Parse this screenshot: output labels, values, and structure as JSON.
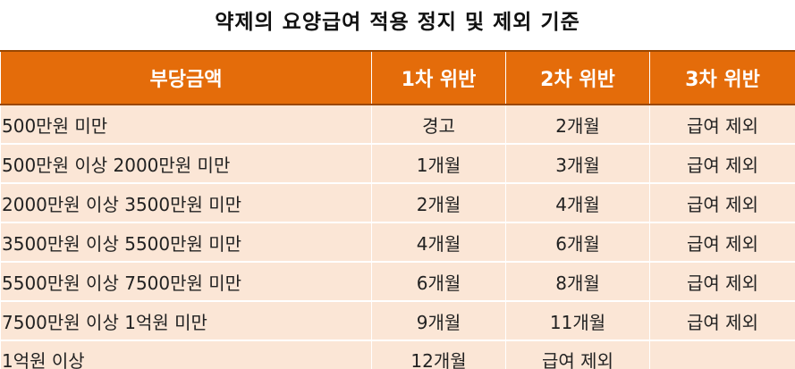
{
  "title": "약제의 요양급여 적용 정지 및 제외 기준",
  "table": {
    "headers": [
      "부당금액",
      "1차 위반",
      "2차 위반",
      "3차 위반"
    ],
    "rows": [
      [
        "500만원 미만",
        "경고",
        "2개월",
        "급여 제외"
      ],
      [
        "500만원 이상 2000만원 미만",
        "1개월",
        "3개월",
        "급여 제외"
      ],
      [
        "2000만원 이상 3500만원 미만",
        "2개월",
        "4개월",
        "급여 제외"
      ],
      [
        "3500만원 이상 5500만원 미만",
        "4개월",
        "6개월",
        "급여 제외"
      ],
      [
        "5500만원 이상 7500만원 미만",
        "6개월",
        "8개월",
        "급여 제외"
      ],
      [
        "7500만원 이상 1억원 미만",
        "9개월",
        "11개월",
        "급여 제외"
      ],
      [
        "1억원 이상",
        "12개월",
        "급여 제외",
        ""
      ]
    ]
  },
  "colors": {
    "header_bg": "#e46c0a",
    "header_text": "#ffffff",
    "row_bg": "#fbe6d6"
  }
}
